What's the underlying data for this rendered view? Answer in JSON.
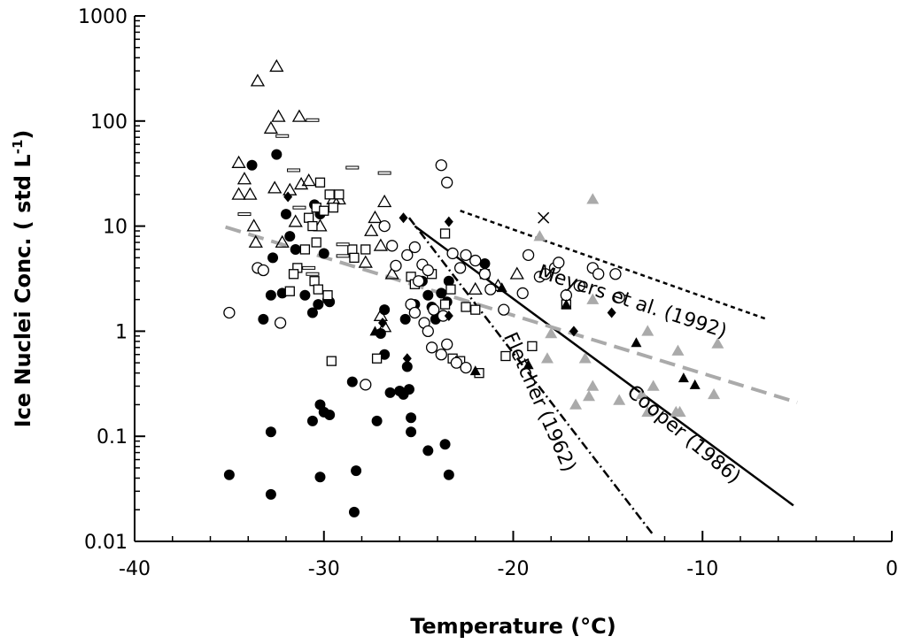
{
  "chart_data": {
    "type": "scatter",
    "title": "",
    "xlabel": "Temperature (°C)",
    "ylabel_main": "Ice Nuclei Conc. ( std L",
    "ylabel_sup": "-1",
    "ylabel_tail": ")",
    "xlim": [
      -40,
      0
    ],
    "ylim": [
      0.01,
      1000
    ],
    "yscale": "log",
    "xticks": [
      -40,
      -30,
      -20,
      -10,
      0
    ],
    "xtick_labels": [
      "-40",
      "-30",
      "-20",
      "-10",
      "0"
    ],
    "yticks": [
      0.01,
      0.1,
      1,
      10,
      100,
      1000
    ],
    "ytick_labels": [
      "0.01",
      "0.1",
      "1",
      "10",
      "100",
      "1000"
    ],
    "grid": false,
    "legend": "none",
    "series": [
      {
        "marker": "filled-circle",
        "color": "#000000",
        "points": [
          [
            -33.8,
            38
          ],
          [
            -32.5,
            48
          ],
          [
            -32,
            13
          ],
          [
            -31.8,
            8
          ],
          [
            -31.5,
            6
          ],
          [
            -30.5,
            16
          ],
          [
            -30.2,
            13
          ],
          [
            -30,
            5.5
          ],
          [
            -29.8,
            2
          ],
          [
            -31,
            2.2
          ],
          [
            -32.2,
            2.3
          ],
          [
            -32.8,
            2.2
          ],
          [
            -33.2,
            1.3
          ],
          [
            -33.5,
            4
          ],
          [
            -32.7,
            5
          ],
          [
            -30.6,
            1.5
          ],
          [
            -30.3,
            1.8
          ],
          [
            -29.7,
            1.9
          ],
          [
            -28.5,
            0.33
          ],
          [
            -30.2,
            0.2
          ],
          [
            -30,
            0.17
          ],
          [
            -29.7,
            0.16
          ],
          [
            -30.6,
            0.14
          ],
          [
            -32.8,
            0.11
          ],
          [
            -35,
            0.043
          ],
          [
            -32.8,
            0.028
          ],
          [
            -30.2,
            0.041
          ],
          [
            -28.3,
            0.047
          ],
          [
            -28.4,
            0.019
          ],
          [
            -27,
            0.95
          ],
          [
            -26.8,
            0.6
          ],
          [
            -26.5,
            0.26
          ],
          [
            -26,
            0.27
          ],
          [
            -25.8,
            0.25
          ],
          [
            -25.5,
            0.28
          ],
          [
            -25.6,
            0.46
          ],
          [
            -25.7,
            1.3
          ],
          [
            -24.8,
            3
          ],
          [
            -24.5,
            2.2
          ],
          [
            -24.3,
            1.7
          ],
          [
            -24.1,
            1.3
          ],
          [
            -23.4,
            3
          ],
          [
            -23.5,
            1.9
          ],
          [
            -23.8,
            2.3
          ],
          [
            -21.5,
            4.4
          ],
          [
            -25.4,
            0.15
          ],
          [
            -27.2,
            0.14
          ],
          [
            -25.4,
            0.11
          ],
          [
            -24.5,
            0.073
          ],
          [
            -23.6,
            0.084
          ],
          [
            -23.4,
            0.043
          ],
          [
            -26.8,
            1.6
          ],
          [
            -25.2,
            1.8
          ]
        ]
      },
      {
        "marker": "open-triangle",
        "color": "#000000",
        "points": [
          [
            -32.5,
            330
          ],
          [
            -33.5,
            240
          ],
          [
            -32.8,
            85
          ],
          [
            -32.4,
            110
          ],
          [
            -31.3,
            110
          ],
          [
            -34.5,
            40
          ],
          [
            -34.2,
            28
          ],
          [
            -34.5,
            20
          ],
          [
            -33.9,
            20
          ],
          [
            -32.6,
            23
          ],
          [
            -31.8,
            22
          ],
          [
            -31.2,
            25
          ],
          [
            -30.8,
            27
          ],
          [
            -29.5,
            18
          ],
          [
            -33.7,
            10
          ],
          [
            -33.6,
            7
          ],
          [
            -32.2,
            7
          ],
          [
            -30.2,
            10
          ],
          [
            -29.2,
            18
          ],
          [
            -31.5,
            11
          ],
          [
            -27.5,
            9
          ],
          [
            -27.3,
            12
          ],
          [
            -26.8,
            17
          ],
          [
            -27,
            6.5
          ],
          [
            -27.8,
            4.5
          ],
          [
            -26.4,
            3.5
          ],
          [
            -27,
            1.4
          ],
          [
            -26.8,
            1.1
          ],
          [
            -22,
            2.5
          ],
          [
            -20.8,
            2.7
          ],
          [
            -19.8,
            3.5
          ]
        ]
      },
      {
        "marker": "open-square",
        "color": "#000000",
        "points": [
          [
            -30.4,
            15
          ],
          [
            -30,
            14
          ],
          [
            -30.2,
            26
          ],
          [
            -29.7,
            20
          ],
          [
            -29.5,
            15
          ],
          [
            -29.2,
            20
          ],
          [
            -30.8,
            12
          ],
          [
            -30.6,
            10
          ],
          [
            -30.4,
            7
          ],
          [
            -31,
            6
          ],
          [
            -31.4,
            4
          ],
          [
            -31.6,
            3.5
          ],
          [
            -31.8,
            2.4
          ],
          [
            -30.5,
            3
          ],
          [
            -30.3,
            2.5
          ],
          [
            -29.8,
            2.2
          ],
          [
            -28.5,
            6
          ],
          [
            -27.8,
            6
          ],
          [
            -28.4,
            5
          ],
          [
            -29.6,
            0.52
          ],
          [
            -27.2,
            0.55
          ],
          [
            -25.4,
            3.3
          ],
          [
            -25.2,
            2.8
          ],
          [
            -24.3,
            3.5
          ],
          [
            -23.6,
            8.5
          ],
          [
            -23.3,
            2.5
          ],
          [
            -23.6,
            1.8
          ],
          [
            -22.5,
            1.7
          ],
          [
            -22,
            1.6
          ],
          [
            -23.2,
            0.55
          ],
          [
            -22.8,
            0.52
          ],
          [
            -21.8,
            0.4
          ],
          [
            -21.5,
            3.5
          ],
          [
            -20.4,
            0.58
          ],
          [
            -19,
            0.72
          ],
          [
            -17.2,
            1.8
          ]
        ]
      },
      {
        "marker": "open-circle",
        "color": "#000000",
        "points": [
          [
            -35,
            1.5
          ],
          [
            -33.5,
            4
          ],
          [
            -33.2,
            3.8
          ],
          [
            -32.3,
            1.2
          ],
          [
            -27.8,
            0.31
          ],
          [
            -26.8,
            10
          ],
          [
            -26.4,
            6.5
          ],
          [
            -26.2,
            4.2
          ],
          [
            -25.6,
            5.3
          ],
          [
            -25.2,
            6.3
          ],
          [
            -24.8,
            4.3
          ],
          [
            -24.5,
            3.8
          ],
          [
            -23.8,
            38
          ],
          [
            -23.5,
            26
          ],
          [
            -23.2,
            5.5
          ],
          [
            -22.8,
            4
          ],
          [
            -22.5,
            5.3
          ],
          [
            -22,
            4.7
          ],
          [
            -21.5,
            3.5
          ],
          [
            -21.2,
            2.5
          ],
          [
            -25.4,
            1.8
          ],
          [
            -25.2,
            1.5
          ],
          [
            -24.7,
            1.2
          ],
          [
            -24.5,
            1
          ],
          [
            -24.3,
            0.7
          ],
          [
            -23.8,
            0.6
          ],
          [
            -23.5,
            0.75
          ],
          [
            -23,
            0.5
          ],
          [
            -22.5,
            0.45
          ],
          [
            -20.5,
            1.6
          ],
          [
            -19.2,
            5.3
          ],
          [
            -19.5,
            2.3
          ],
          [
            -18.6,
            3.3
          ],
          [
            -18.3,
            3.5
          ],
          [
            -17.8,
            4
          ],
          [
            -17.6,
            4.5
          ],
          [
            -17.2,
            2.2
          ],
          [
            -16.5,
            2.7
          ],
          [
            -15.8,
            4
          ],
          [
            -15.5,
            3.5
          ],
          [
            -14.6,
            3.5
          ],
          [
            -14.4,
            2.1
          ],
          [
            -23.7,
            1.4
          ],
          [
            -24.2,
            1.6
          ],
          [
            -25,
            3
          ]
        ]
      },
      {
        "marker": "filled-diamond",
        "color": "#000000",
        "points": [
          [
            -31.9,
            19
          ],
          [
            -25.8,
            12
          ],
          [
            -23.4,
            11
          ],
          [
            -16.8,
            1
          ],
          [
            -14.8,
            1.5
          ],
          [
            -25.6,
            0.55
          ],
          [
            -26.9,
            1.2
          ],
          [
            -23.4,
            1.4
          ]
        ]
      },
      {
        "marker": "filled-triangle",
        "color": "#000000",
        "points": [
          [
            -20.6,
            2.6
          ],
          [
            -19.2,
            0.48
          ],
          [
            -17.2,
            1.8
          ],
          [
            -13.5,
            0.78
          ],
          [
            -11,
            0.36
          ],
          [
            -10.4,
            0.31
          ],
          [
            -22,
            0.42
          ],
          [
            -27.3,
            1
          ]
        ]
      },
      {
        "marker": "dash",
        "color": "#000000",
        "points": [
          [
            -32.2,
            72
          ],
          [
            -30.6,
            102
          ],
          [
            -31.6,
            34
          ],
          [
            -31.3,
            15
          ],
          [
            -28.5,
            36
          ],
          [
            -26.8,
            32
          ],
          [
            -34.2,
            13
          ],
          [
            -30.8,
            4
          ],
          [
            -30.6,
            3.5
          ],
          [
            -29,
            6.7
          ],
          [
            -29,
            5.2
          ]
        ]
      },
      {
        "marker": "gray-triangle",
        "color": "#aaaaaa",
        "points": [
          [
            -15.8,
            18
          ],
          [
            -18.6,
            8
          ],
          [
            -15.8,
            2
          ],
          [
            -18.2,
            0.55
          ],
          [
            -18,
            0.95
          ],
          [
            -16.2,
            0.55
          ],
          [
            -15.8,
            0.3
          ],
          [
            -16,
            0.24
          ],
          [
            -16.7,
            0.2
          ],
          [
            -14.4,
            0.22
          ],
          [
            -12.9,
            1
          ],
          [
            -12.6,
            0.3
          ],
          [
            -11.3,
            0.65
          ],
          [
            -11.4,
            0.17
          ],
          [
            -11.2,
            0.17
          ],
          [
            -9.2,
            0.76
          ],
          [
            -9.4,
            0.25
          ],
          [
            -13.2,
            0.25
          ],
          [
            -12.9,
            0.17
          ]
        ]
      },
      {
        "marker": "cross",
        "color": "#000000",
        "points": [
          [
            -18.4,
            12
          ]
        ]
      }
    ],
    "lines": [
      {
        "name": "Meyers et al. (1992)",
        "style": "short-dash",
        "color": "#000000",
        "x": [
          -22.8,
          -6.6
        ],
        "y": [
          14,
          1.3
        ]
      },
      {
        "name": "Cooper (1986)",
        "style": "solid",
        "color": "#000000",
        "x": [
          -25.2,
          -5.2
        ],
        "y": [
          10,
          0.022
        ]
      },
      {
        "name": "Fletcher (1962)",
        "style": "dash-dot",
        "color": "#000000",
        "x": [
          -25.5,
          -12.6
        ],
        "y": [
          12,
          0.0115
        ]
      },
      {
        "name": "",
        "style": "long-dash",
        "color": "#aaaaaa",
        "x": [
          -35.2,
          -5
        ],
        "y": [
          9.8,
          0.21
        ]
      }
    ],
    "annotations": [
      {
        "text": "Meyers et al. (1992)",
        "x": -13.8,
        "y": 1.68,
        "angle": 18
      },
      {
        "text": "Cooper (1986)",
        "x": -11.2,
        "y": 0.094,
        "angle": 40
      },
      {
        "text": "Fletcher (1962)",
        "x": -18.9,
        "y": 0.2,
        "angle": 66
      }
    ]
  }
}
